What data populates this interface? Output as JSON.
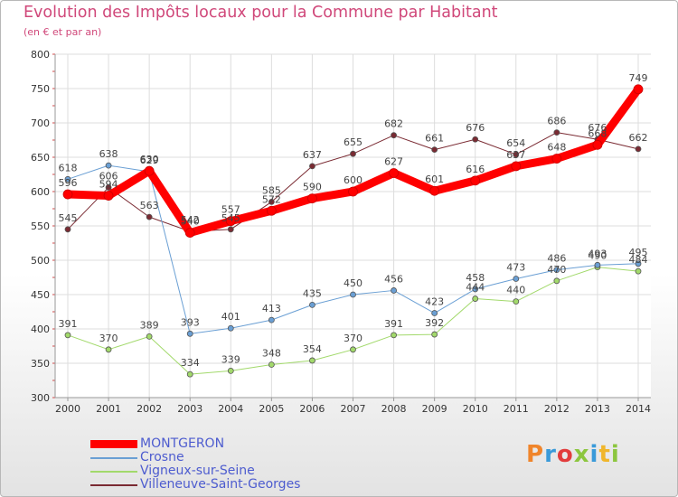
{
  "title": "Evolution des Impôts locaux pour la Commune par Habitant",
  "subtitle": "(en € et par an)",
  "logo_text": "Proxiti",
  "logo_colors": [
    "#f0852b",
    "#3a9ad9",
    "#e23c3c",
    "#8cc63f",
    "#3a9ad9",
    "#f0b62b",
    "#8cc63f"
  ],
  "chart_data": {
    "type": "line",
    "title": "Evolution des Impôts locaux pour la Commune par Habitant",
    "subtitle": "(en € et par an)",
    "xlabel": "",
    "ylabel": "",
    "ylim": [
      300,
      800
    ],
    "yticks": [
      300,
      350,
      400,
      450,
      500,
      550,
      600,
      650,
      700,
      750,
      800
    ],
    "x": [
      "2000",
      "2001",
      "2002",
      "2003",
      "2004",
      "2005",
      "2006",
      "2007",
      "2008",
      "2009",
      "2010",
      "2011",
      "2012",
      "2013",
      "2014"
    ],
    "grid": true,
    "legend_position": "bottom-left",
    "series": [
      {
        "name": "MONTGERON",
        "color": "#ff0000",
        "width": 9,
        "marker": 5,
        "labels": [
          "596",
          "594",
          "630",
          "540",
          "557",
          "572",
          "590",
          "600",
          "627",
          "601",
          "616",
          "637",
          "648",
          "668",
          "749"
        ],
        "values": [
          596,
          594,
          630,
          540,
          557,
          572,
          590,
          600,
          627,
          601,
          616,
          637,
          648,
          668,
          749
        ]
      },
      {
        "name": "Crosne",
        "color": "#6a9fd4",
        "width": 1,
        "marker": 3,
        "labels": [
          "618",
          "638",
          "629",
          "393",
          "401",
          "413",
          "435",
          "450",
          "456",
          "423",
          "458",
          "473",
          "486",
          "493",
          "495"
        ],
        "values": [
          618,
          638,
          629,
          393,
          401,
          413,
          435,
          450,
          456,
          423,
          458,
          473,
          486,
          493,
          495
        ]
      },
      {
        "name": "Vigneux-sur-Seine",
        "color": "#a2d96b",
        "width": 1,
        "marker": 3,
        "labels": [
          "391",
          "370",
          "389",
          "334",
          "339",
          "348",
          "354",
          "370",
          "391",
          "392",
          "444",
          "440",
          "470",
          "490",
          "484"
        ],
        "values": [
          391,
          370,
          389,
          334,
          339,
          348,
          354,
          370,
          391,
          392,
          444,
          440,
          470,
          490,
          484
        ]
      },
      {
        "name": "Villeneuve-Saint-Georges",
        "color": "#7a2a32",
        "width": 1,
        "marker": 3,
        "labels": [
          "545",
          "606",
          "563",
          "542",
          "545",
          "585",
          "637",
          "655",
          "682",
          "661",
          "676",
          "654",
          "686",
          "676",
          "662"
        ],
        "values": [
          545,
          606,
          563,
          542,
          545,
          585,
          637,
          655,
          682,
          661,
          676,
          654,
          686,
          676,
          662
        ]
      }
    ]
  }
}
